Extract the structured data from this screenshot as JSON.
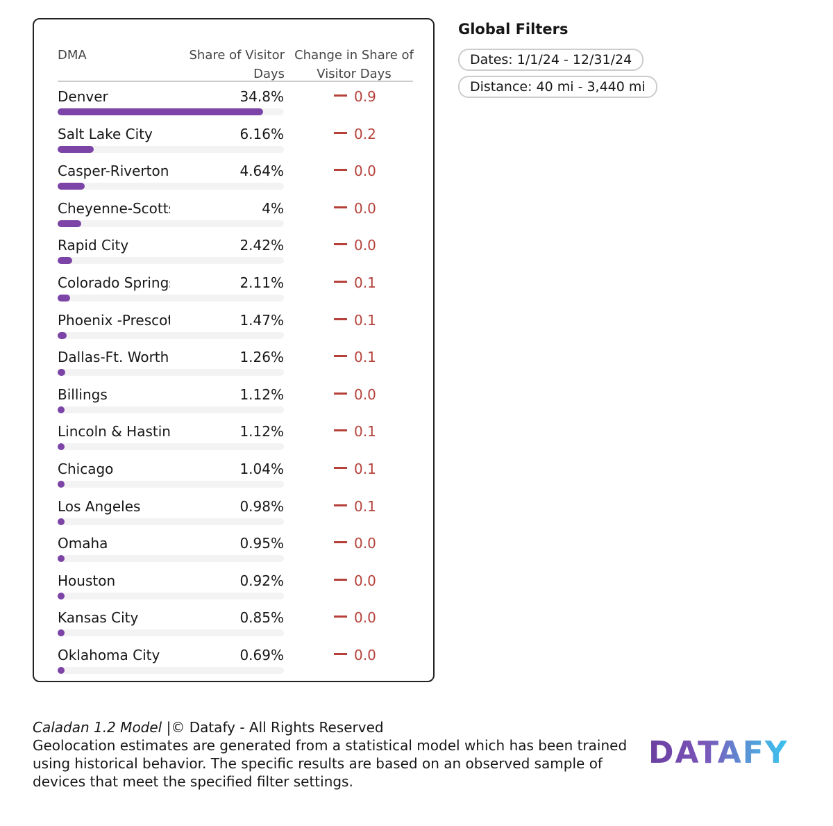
{
  "table": {
    "headers": {
      "dma": "DMA",
      "share": "Share of Visitor Days",
      "change": "Change in Share of Visitor Days"
    },
    "share_scale_max": 38.3,
    "rows": [
      {
        "dma": "Denver",
        "share": "34.8%",
        "share_value": 34.8,
        "change": "0.9"
      },
      {
        "dma": "Salt Lake City",
        "share": "6.16%",
        "share_value": 6.16,
        "change": "0.2"
      },
      {
        "dma": "Casper-Riverton",
        "share": "4.64%",
        "share_value": 4.64,
        "change": "0.0"
      },
      {
        "dma": "Cheyenne-Scottsbluff",
        "share": "4%",
        "share_value": 4,
        "change": "0.0"
      },
      {
        "dma": "Rapid City",
        "share": "2.42%",
        "share_value": 2.42,
        "change": "0.0"
      },
      {
        "dma": "Colorado Springs",
        "share": "2.11%",
        "share_value": 2.11,
        "change": "0.1"
      },
      {
        "dma": "Phoenix -Prescott",
        "share": "1.47%",
        "share_value": 1.47,
        "change": "0.1"
      },
      {
        "dma": "Dallas-Ft. Worth",
        "share": "1.26%",
        "share_value": 1.26,
        "change": "0.1"
      },
      {
        "dma": "Billings",
        "share": "1.12%",
        "share_value": 1.12,
        "change": "0.0"
      },
      {
        "dma": "Lincoln & Hastings",
        "share": "1.12%",
        "share_value": 1.12,
        "change": "0.1"
      },
      {
        "dma": "Chicago",
        "share": "1.04%",
        "share_value": 1.04,
        "change": "0.1"
      },
      {
        "dma": "Los Angeles",
        "share": "0.98%",
        "share_value": 0.98,
        "change": "0.1"
      },
      {
        "dma": "Omaha",
        "share": "0.95%",
        "share_value": 0.95,
        "change": "0.0"
      },
      {
        "dma": "Houston",
        "share": "0.92%",
        "share_value": 0.92,
        "change": "0.0"
      },
      {
        "dma": "Kansas City",
        "share": "0.85%",
        "share_value": 0.85,
        "change": "0.0"
      },
      {
        "dma": "Oklahoma City",
        "share": "0.69%",
        "share_value": 0.69,
        "change": "0.0"
      }
    ]
  },
  "filters": {
    "title": "Global Filters",
    "dates": "Dates: 1/1/24 - 12/31/24",
    "distance": "Distance: 40 mi - 3,440 mi"
  },
  "footer": {
    "model": "Caladan 1.2 Model",
    "rights": " |© Datafy - All Rights Reserved",
    "disclaimer": "Geolocation estimates are generated from a statistical model which has been trained using historical behavior. The specific results are based on an observed sample of devices that meet the specified filter settings."
  },
  "logo": {
    "text": "DATAFY"
  },
  "colors": {
    "bar": "#7b44a6",
    "negative": "#b5413a"
  }
}
